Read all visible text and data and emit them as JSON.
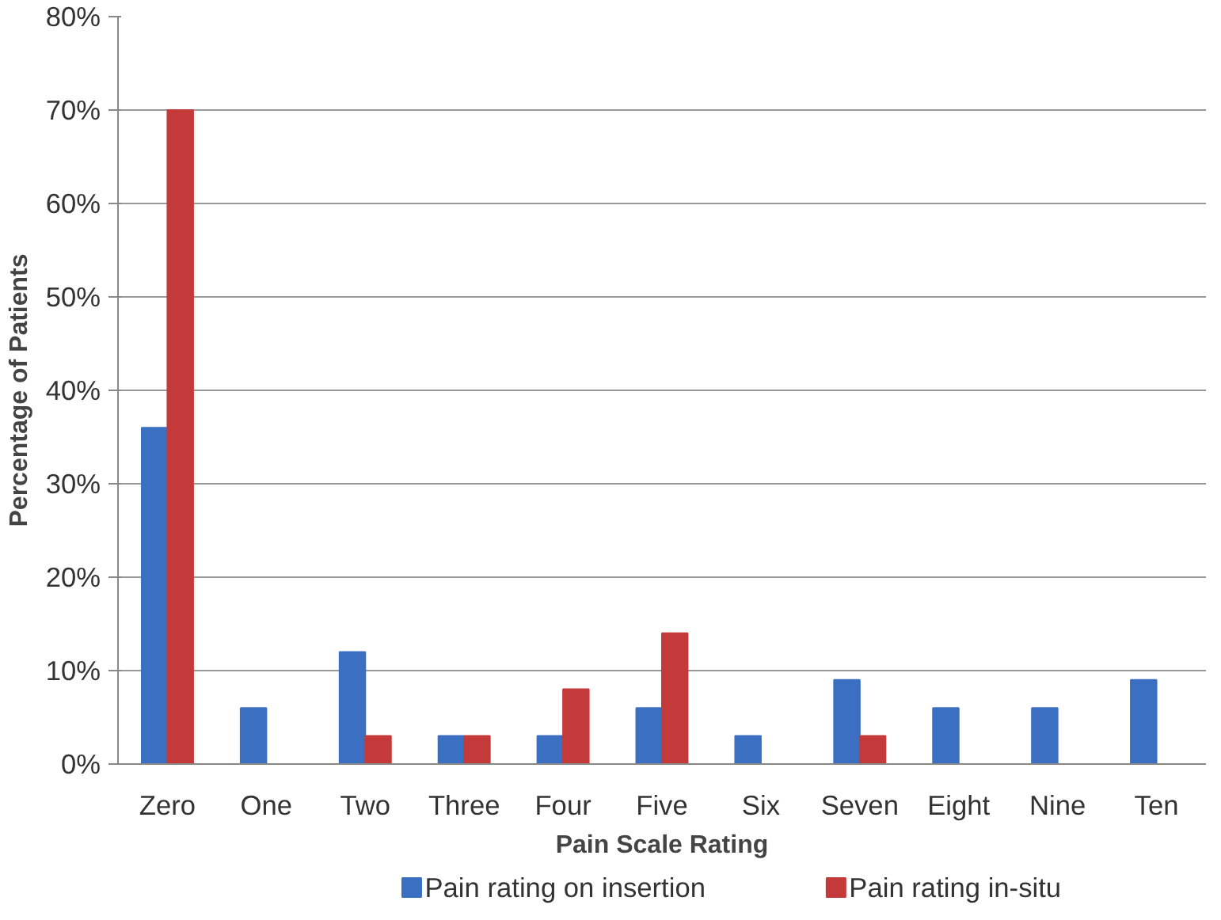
{
  "chart_data": {
    "type": "bar",
    "xlabel": "Pain Scale Rating",
    "ylabel": "Percentage of Patients",
    "categories": [
      "Zero",
      "One",
      "Two",
      "Three",
      "Four",
      "Five",
      "Six",
      "Seven",
      "Eight",
      "Nine",
      "Ten"
    ],
    "series": [
      {
        "name": "Pain rating on insertion",
        "color": "#3b6fc2",
        "values": [
          36,
          6,
          12,
          3,
          3,
          6,
          3,
          9,
          6,
          6,
          9
        ]
      },
      {
        "name": "Pain rating in-situ",
        "color": "#c43a3a",
        "values": [
          70,
          0,
          3,
          3,
          8,
          14,
          0,
          3,
          0,
          0,
          0
        ]
      }
    ],
    "ylim": [
      0,
      80
    ],
    "yticks": [
      {
        "value": 0,
        "label": "0%"
      },
      {
        "value": 10,
        "label": "10%"
      },
      {
        "value": 20,
        "label": "20%"
      },
      {
        "value": 30,
        "label": "30%"
      },
      {
        "value": 40,
        "label": "40%"
      },
      {
        "value": 50,
        "label": "50%"
      },
      {
        "value": 60,
        "label": "60%"
      },
      {
        "value": 70,
        "label": "70%"
      },
      {
        "value": 80,
        "label": "80%"
      }
    ],
    "grid": "y",
    "legend": "bottom"
  }
}
